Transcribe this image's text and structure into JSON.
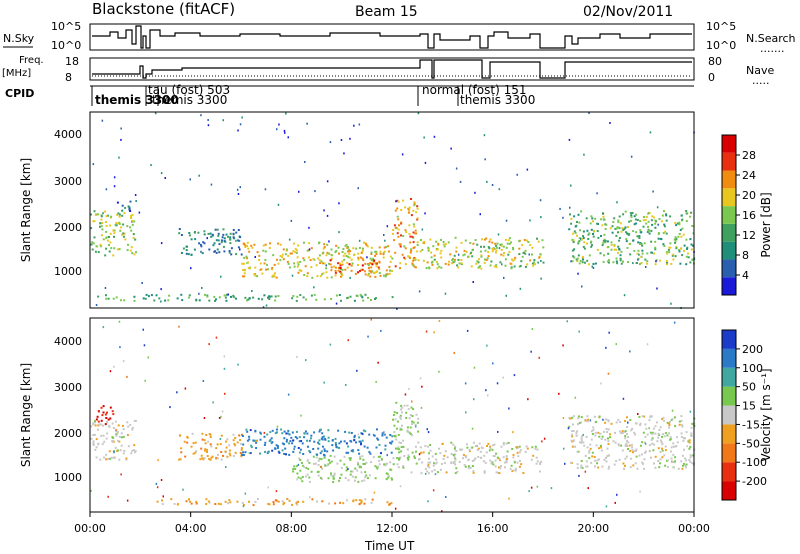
{
  "header": {
    "station": "Blackstone (fitACF)",
    "beam": "Beam 15",
    "date": "02/Nov/2011"
  },
  "top_panels": {
    "nsky_label": "N.Sky",
    "nsky_ticks": [
      "10^5",
      "10^0"
    ],
    "nsearch_label": "N.Search",
    "nsearch_ticks": [
      "10^5",
      "10^0"
    ],
    "freq_label_line1": "Freq.",
    "freq_label_line2": "[MHz]",
    "freq_ticks": [
      "18",
      "8"
    ],
    "nave_label": "Nave",
    "nave_ticks": [
      "80",
      "0"
    ],
    "cpid_label": "CPID",
    "cpid_entries": [
      {
        "text": "themis 3300",
        "hour": 0.1
      },
      {
        "text": "tau (fost) 503",
        "hour": 2.6
      },
      {
        "text": "themis 3300",
        "hour": 2.75
      },
      {
        "text": "normal (fost) 151",
        "hour": 13.1
      },
      {
        "text": "themis 3300",
        "hour": 14.6
      }
    ]
  },
  "x_axis": {
    "label": "Time UT",
    "ticks": [
      "00:00",
      "04:00",
      "08:00",
      "12:00",
      "16:00",
      "20:00",
      "00:00"
    ],
    "range_hours": [
      0,
      24
    ]
  },
  "power_panel": {
    "ylabel": "Slant Range [km]",
    "yticks": [
      "4000",
      "3000",
      "2000",
      "1000"
    ],
    "colorbar_label": "Power [dB]",
    "colorbar_ticks": [
      "28",
      "24",
      "20",
      "16",
      "12",
      "8",
      "4"
    ],
    "colors": [
      "#1a1ad8",
      "#2a5fb0",
      "#1f8f7a",
      "#3fa060",
      "#7ac850",
      "#e8c820",
      "#f08c10",
      "#e83010",
      "#d80000"
    ]
  },
  "velocity_panel": {
    "ylabel": "Slant Range [km]",
    "yticks": [
      "4000",
      "3000",
      "2000",
      "1000"
    ],
    "colorbar_label": "Velocity [m s⁻¹]",
    "colorbar_ticks": [
      "200",
      "100",
      "50",
      "15",
      "-15",
      "-50",
      "-100",
      "-200"
    ],
    "colors": [
      "#1a3cc8",
      "#2a7ac8",
      "#40a8a0",
      "#78c850",
      "#c8c8c8",
      "#f0a020",
      "#f07818",
      "#e83010",
      "#d80000"
    ]
  },
  "chart_data": [
    {
      "type": "heatmap",
      "title": "Power",
      "xlabel": "Time UT",
      "ylabel": "Slant Range [km]",
      "xlim": [
        0,
        24
      ],
      "ylim": [
        200,
        4600
      ],
      "colorbar": {
        "label": "Power [dB]",
        "min": 0,
        "max": 32
      },
      "echo_regions": [
        {
          "t_start": 0.0,
          "t_end": 1.8,
          "range_start": 1400,
          "range_end": 2400,
          "power_db": 16
        },
        {
          "t_start": 1.0,
          "t_end": 1.6,
          "range_start": 2400,
          "range_end": 2700,
          "power_db": 6
        },
        {
          "t_start": 3.5,
          "t_end": 6.0,
          "range_start": 1400,
          "range_end": 2000,
          "power_db": 8
        },
        {
          "t_start": 6.0,
          "t_end": 12.0,
          "range_start": 900,
          "range_end": 1700,
          "power_db": 20
        },
        {
          "t_start": 9.5,
          "t_end": 11.5,
          "range_start": 1000,
          "range_end": 1300,
          "power_db": 28
        },
        {
          "t_start": 12.0,
          "t_end": 13.0,
          "range_start": 1100,
          "range_end": 2700,
          "power_db": 22
        },
        {
          "t_start": 13.0,
          "t_end": 18.0,
          "range_start": 1100,
          "range_end": 1800,
          "power_db": 18
        },
        {
          "t_start": 19.0,
          "t_end": 24.0,
          "range_start": 1200,
          "range_end": 2400,
          "power_db": 14
        },
        {
          "t_start": 0.0,
          "t_end": 12.0,
          "range_start": 380,
          "range_end": 520,
          "power_db": 12
        }
      ]
    },
    {
      "type": "heatmap",
      "title": "Velocity",
      "xlabel": "Time UT",
      "ylabel": "Slant Range [km]",
      "xlim": [
        0,
        24
      ],
      "ylim": [
        200,
        4600
      ],
      "colorbar": {
        "label": "Velocity [m s⁻¹]",
        "min": -250,
        "max": 250
      },
      "echo_regions": [
        {
          "t_start": 0.0,
          "t_end": 1.8,
          "range_start": 1400,
          "range_end": 2300,
          "velocity": 0
        },
        {
          "t_start": 0.2,
          "t_end": 0.9,
          "range_start": 2200,
          "range_end": 2700,
          "velocity": -220
        },
        {
          "t_start": 3.5,
          "t_end": 6.0,
          "range_start": 1400,
          "range_end": 2000,
          "velocity": -60
        },
        {
          "t_start": 6.0,
          "t_end": 12.0,
          "range_start": 1500,
          "range_end": 2100,
          "velocity": 180
        },
        {
          "t_start": 8.0,
          "t_end": 12.0,
          "range_start": 900,
          "range_end": 1500,
          "velocity": 40
        },
        {
          "t_start": 12.0,
          "t_end": 13.0,
          "range_start": 1100,
          "range_end": 2700,
          "velocity": 40
        },
        {
          "t_start": 13.0,
          "t_end": 18.0,
          "range_start": 1100,
          "range_end": 1800,
          "velocity": 0
        },
        {
          "t_start": 19.0,
          "t_end": 24.0,
          "range_start": 1200,
          "range_end": 2400,
          "velocity": 0
        },
        {
          "t_start": 2.5,
          "t_end": 12.0,
          "range_start": 380,
          "range_end": 520,
          "velocity": -60
        }
      ]
    }
  ]
}
